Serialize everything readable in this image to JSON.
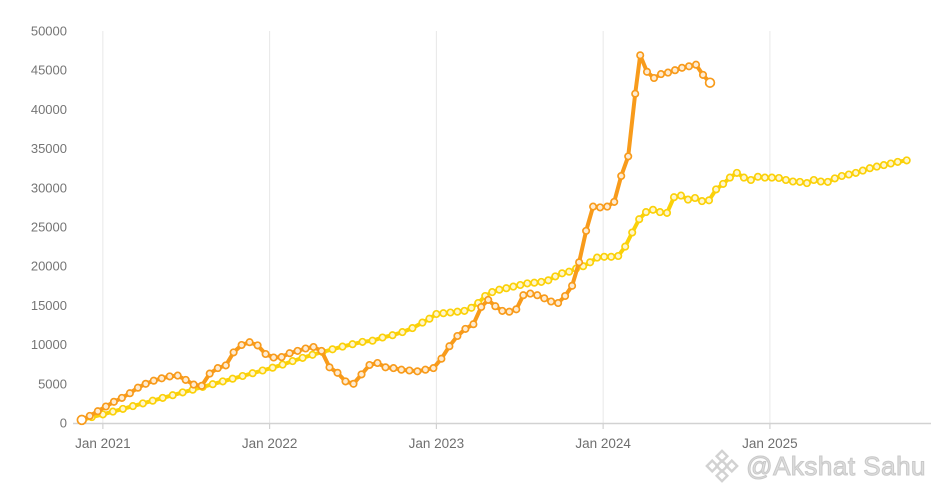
{
  "watermark": {
    "text": "@Akshat Sahu",
    "icon": "diamond-logo",
    "color": "#d6d6d6"
  },
  "chart_data": {
    "type": "line",
    "title": "",
    "xlabel": "",
    "ylabel": "",
    "legend": "none",
    "grid": "vertical-only",
    "background": "#ffffff",
    "axis_text_color": "#757575",
    "gridline_color": "#e8e8e8",
    "baseline_color": "#d2d2d2",
    "x_axis": {
      "range": [
        2020.833,
        2025.84
      ],
      "grid_years": [
        2021,
        2022,
        2023,
        2024,
        2025
      ],
      "labels": [
        "Jan 2021",
        "Jan 2022",
        "Jan 2023",
        "Jan 2024",
        "Jan 2025"
      ]
    },
    "y_axis": {
      "range": [
        0,
        50000
      ],
      "ticks": [
        0,
        5000,
        10000,
        15000,
        20000,
        25000,
        30000,
        35000,
        40000,
        45000,
        50000
      ],
      "tick_labels": [
        "0",
        "5000",
        "10000",
        "15000",
        "20000",
        "25000",
        "30000",
        "35000",
        "40000",
        "45000",
        "50000"
      ]
    },
    "series": [
      {
        "name": "yellow",
        "color": "#FBD109",
        "line_width": 4,
        "marker": "open-circle",
        "points": [
          [
            2020.874,
            350
          ],
          [
            2020.934,
            750
          ],
          [
            2021.0,
            1100
          ],
          [
            2021.06,
            1450
          ],
          [
            2021.12,
            1800
          ],
          [
            2021.18,
            2150
          ],
          [
            2021.24,
            2500
          ],
          [
            2021.299,
            2850
          ],
          [
            2021.359,
            3200
          ],
          [
            2021.419,
            3550
          ],
          [
            2021.479,
            3900
          ],
          [
            2021.539,
            4250
          ],
          [
            2021.599,
            4600
          ],
          [
            2021.659,
            4950
          ],
          [
            2021.719,
            5300
          ],
          [
            2021.778,
            5650
          ],
          [
            2021.838,
            6000
          ],
          [
            2021.898,
            6350
          ],
          [
            2021.958,
            6700
          ],
          [
            2022.018,
            7050
          ],
          [
            2022.078,
            7450
          ],
          [
            2022.138,
            7900
          ],
          [
            2022.198,
            8300
          ],
          [
            2022.257,
            8700
          ],
          [
            2022.317,
            9050
          ],
          [
            2022.377,
            9400
          ],
          [
            2022.437,
            9750
          ],
          [
            2022.497,
            10050
          ],
          [
            2022.557,
            10350
          ],
          [
            2022.617,
            10500
          ],
          [
            2022.677,
            10900
          ],
          [
            2022.737,
            11200
          ],
          [
            2022.796,
            11600
          ],
          [
            2022.856,
            12100
          ],
          [
            2022.916,
            12800
          ],
          [
            2022.958,
            13300
          ],
          [
            2023.0,
            13900
          ],
          [
            2023.042,
            14000
          ],
          [
            2023.084,
            14100
          ],
          [
            2023.126,
            14200
          ],
          [
            2023.168,
            14300
          ],
          [
            2023.21,
            14700
          ],
          [
            2023.251,
            15300
          ],
          [
            2023.293,
            16200
          ],
          [
            2023.335,
            16700
          ],
          [
            2023.377,
            17000
          ],
          [
            2023.419,
            17200
          ],
          [
            2023.461,
            17400
          ],
          [
            2023.503,
            17600
          ],
          [
            2023.545,
            17800
          ],
          [
            2023.587,
            17900
          ],
          [
            2023.629,
            18000
          ],
          [
            2023.671,
            18200
          ],
          [
            2023.713,
            18700
          ],
          [
            2023.754,
            19100
          ],
          [
            2023.796,
            19300
          ],
          [
            2023.838,
            19700
          ],
          [
            2023.88,
            20000
          ],
          [
            2023.922,
            20500
          ],
          [
            2023.964,
            21100
          ],
          [
            2024.006,
            21200
          ],
          [
            2024.048,
            21200
          ],
          [
            2024.09,
            21300
          ],
          [
            2024.132,
            22500
          ],
          [
            2024.174,
            24300
          ],
          [
            2024.216,
            26000
          ],
          [
            2024.257,
            26900
          ],
          [
            2024.299,
            27200
          ],
          [
            2024.341,
            26900
          ],
          [
            2024.383,
            26800
          ],
          [
            2024.425,
            28800
          ],
          [
            2024.467,
            29000
          ],
          [
            2024.509,
            28500
          ],
          [
            2024.551,
            28700
          ],
          [
            2024.593,
            28300
          ],
          [
            2024.635,
            28400
          ],
          [
            2024.677,
            29800
          ],
          [
            2024.719,
            30500
          ],
          [
            2024.76,
            31300
          ],
          [
            2024.802,
            31900
          ],
          [
            2024.844,
            31300
          ],
          [
            2024.886,
            31000
          ],
          [
            2024.928,
            31400
          ],
          [
            2024.97,
            31300
          ],
          [
            2025.012,
            31300
          ],
          [
            2025.054,
            31250
          ],
          [
            2025.096,
            31000
          ],
          [
            2025.138,
            30800
          ],
          [
            2025.18,
            30750
          ],
          [
            2025.222,
            30600
          ],
          [
            2025.263,
            31000
          ],
          [
            2025.305,
            30800
          ],
          [
            2025.347,
            30750
          ],
          [
            2025.389,
            31200
          ],
          [
            2025.431,
            31500
          ],
          [
            2025.473,
            31700
          ],
          [
            2025.515,
            31900
          ],
          [
            2025.557,
            32200
          ],
          [
            2025.599,
            32500
          ],
          [
            2025.641,
            32700
          ],
          [
            2025.683,
            32900
          ],
          [
            2025.725,
            33100
          ],
          [
            2025.766,
            33300
          ],
          [
            2025.82,
            33500
          ]
        ]
      },
      {
        "name": "orange",
        "color": "#F89B1B",
        "line_width": 4,
        "marker": "open-circle",
        "points": [
          [
            2020.874,
            400
          ],
          [
            2020.922,
            900
          ],
          [
            2020.97,
            1500
          ],
          [
            2021.018,
            2100
          ],
          [
            2021.066,
            2700
          ],
          [
            2021.114,
            3200
          ],
          [
            2021.162,
            3800
          ],
          [
            2021.21,
            4500
          ],
          [
            2021.257,
            5000
          ],
          [
            2021.305,
            5400
          ],
          [
            2021.353,
            5700
          ],
          [
            2021.401,
            5950
          ],
          [
            2021.449,
            6050
          ],
          [
            2021.497,
            5500
          ],
          [
            2021.545,
            4900
          ],
          [
            2021.593,
            4750
          ],
          [
            2021.641,
            6300
          ],
          [
            2021.689,
            7000
          ],
          [
            2021.737,
            7350
          ],
          [
            2021.784,
            9000
          ],
          [
            2021.832,
            9950
          ],
          [
            2021.88,
            10300
          ],
          [
            2021.928,
            9900
          ],
          [
            2021.976,
            8800
          ],
          [
            2022.024,
            8350
          ],
          [
            2022.072,
            8400
          ],
          [
            2022.12,
            8900
          ],
          [
            2022.168,
            9200
          ],
          [
            2022.216,
            9500
          ],
          [
            2022.263,
            9700
          ],
          [
            2022.311,
            9200
          ],
          [
            2022.359,
            7100
          ],
          [
            2022.407,
            6400
          ],
          [
            2022.455,
            5300
          ],
          [
            2022.503,
            5000
          ],
          [
            2022.551,
            6200
          ],
          [
            2022.599,
            7400
          ],
          [
            2022.647,
            7650
          ],
          [
            2022.695,
            7100
          ],
          [
            2022.743,
            7000
          ],
          [
            2022.79,
            6800
          ],
          [
            2022.838,
            6700
          ],
          [
            2022.886,
            6600
          ],
          [
            2022.934,
            6800
          ],
          [
            2022.982,
            7000
          ],
          [
            2023.03,
            8200
          ],
          [
            2023.078,
            9800
          ],
          [
            2023.126,
            11100
          ],
          [
            2023.174,
            12000
          ],
          [
            2023.222,
            12600
          ],
          [
            2023.269,
            14800
          ],
          [
            2023.311,
            15700
          ],
          [
            2023.353,
            14900
          ],
          [
            2023.395,
            14300
          ],
          [
            2023.437,
            14200
          ],
          [
            2023.479,
            14500
          ],
          [
            2023.521,
            16300
          ],
          [
            2023.563,
            16500
          ],
          [
            2023.605,
            16300
          ],
          [
            2023.647,
            15900
          ],
          [
            2023.688,
            15500
          ],
          [
            2023.73,
            15300
          ],
          [
            2023.772,
            16200
          ],
          [
            2023.814,
            17500
          ],
          [
            2023.856,
            20500
          ],
          [
            2023.898,
            24500
          ],
          [
            2023.94,
            27600
          ],
          [
            2023.982,
            27500
          ],
          [
            2024.024,
            27600
          ],
          [
            2024.066,
            28200
          ],
          [
            2024.108,
            31500
          ],
          [
            2024.15,
            34000
          ],
          [
            2024.192,
            42000
          ],
          [
            2024.222,
            46900
          ],
          [
            2024.263,
            44800
          ],
          [
            2024.305,
            44000
          ],
          [
            2024.347,
            44500
          ],
          [
            2024.389,
            44700
          ],
          [
            2024.431,
            45000
          ],
          [
            2024.473,
            45300
          ],
          [
            2024.515,
            45500
          ],
          [
            2024.557,
            45700
          ],
          [
            2024.599,
            44400
          ],
          [
            2024.641,
            43400
          ]
        ]
      }
    ]
  }
}
